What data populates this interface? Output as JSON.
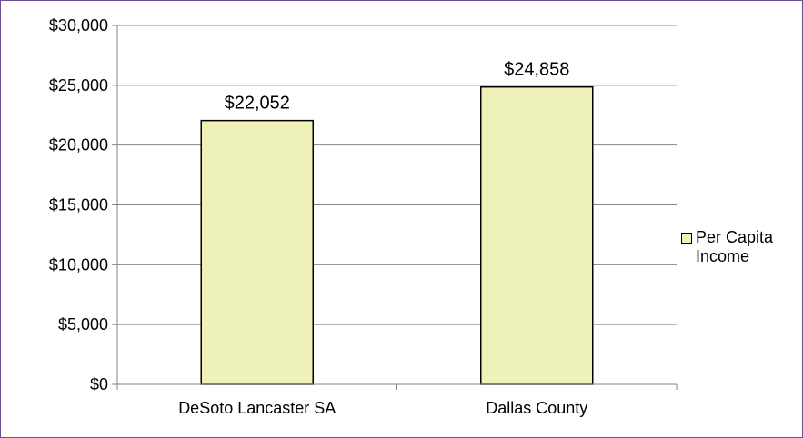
{
  "chart_data": {
    "type": "bar",
    "categories": [
      "DeSoto Lancaster SA",
      "Dallas County"
    ],
    "series": [
      {
        "name": "Per Capita Income",
        "values": [
          22052,
          24858
        ],
        "value_labels": [
          "$22,052",
          "$24,858"
        ]
      }
    ],
    "ylim": [
      0,
      30000
    ],
    "yticks": [
      0,
      5000,
      10000,
      15000,
      20000,
      25000,
      30000
    ],
    "ytick_labels": [
      "$0",
      "$5,000",
      "$10,000",
      "$15,000",
      "$20,000",
      "$25,000",
      "$30,000"
    ],
    "grid": true,
    "legend_position": "right"
  },
  "colors": {
    "bar_fill": "#eff2b8",
    "bar_stroke": "#000000",
    "grid": "#868686",
    "frame": "#6b4f8f"
  }
}
